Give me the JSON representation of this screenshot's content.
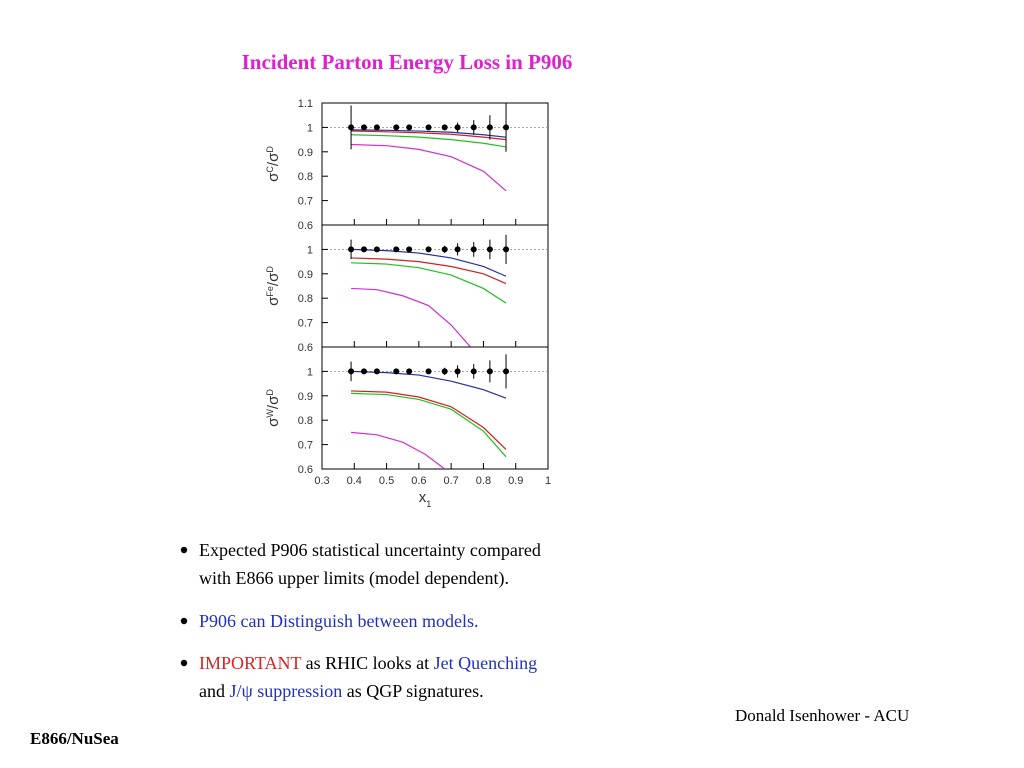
{
  "title": "Incident Parton Energy Loss in P906",
  "title_color": "#e020d0",
  "chart_data": [
    {
      "type": "errorbar",
      "ylabel_parts": [
        "σ",
        "C",
        "/σ",
        "D"
      ],
      "xlim": [
        0.3,
        1
      ],
      "ylim": [
        0.6,
        1.1
      ],
      "yticks": [
        0.6,
        0.7,
        0.8,
        0.9,
        1,
        1.1
      ],
      "xticks": [
        0.3,
        0.4,
        0.5,
        0.6,
        0.7,
        0.8,
        0.9,
        1
      ],
      "points": {
        "color": "#000000",
        "x": [
          0.39,
          0.43,
          0.47,
          0.53,
          0.57,
          0.63,
          0.68,
          0.72,
          0.77,
          0.82,
          0.87
        ],
        "values": [
          1,
          1,
          1,
          1,
          1,
          1,
          1,
          1,
          1,
          1,
          1
        ],
        "errors": [
          0.09,
          0.01,
          0.008,
          0.008,
          0.008,
          0.01,
          0.012,
          0.02,
          0.03,
          0.05,
          0.1
        ]
      },
      "series": [
        {
          "color": "#2030a0",
          "x": [
            0.39,
            0.5,
            0.6,
            0.7,
            0.8,
            0.87
          ],
          "values": [
            0.99,
            0.988,
            0.985,
            0.98,
            0.97,
            0.96
          ]
        },
        {
          "color": "#d02020",
          "x": [
            0.39,
            0.5,
            0.6,
            0.7,
            0.8,
            0.87
          ],
          "values": [
            0.985,
            0.982,
            0.978,
            0.972,
            0.96,
            0.95
          ]
        },
        {
          "color": "#20c020",
          "x": [
            0.39,
            0.5,
            0.6,
            0.7,
            0.8,
            0.87
          ],
          "values": [
            0.97,
            0.966,
            0.96,
            0.95,
            0.935,
            0.92
          ]
        },
        {
          "color": "#d030d0",
          "x": [
            0.39,
            0.5,
            0.6,
            0.7,
            0.8,
            0.87
          ],
          "values": [
            0.93,
            0.925,
            0.91,
            0.88,
            0.82,
            0.74
          ]
        }
      ]
    },
    {
      "type": "errorbar",
      "ylabel_parts": [
        "σ",
        "Fe",
        "/σ",
        "D"
      ],
      "xlim": [
        0.3,
        1
      ],
      "ylim": [
        0.6,
        1.1
      ],
      "yticks": [
        0.6,
        0.7,
        0.8,
        0.9,
        1
      ],
      "xticks": [
        0.3,
        0.4,
        0.5,
        0.6,
        0.7,
        0.8,
        0.9,
        1
      ],
      "points": {
        "color": "#000000",
        "x": [
          0.39,
          0.43,
          0.47,
          0.53,
          0.57,
          0.63,
          0.68,
          0.72,
          0.77,
          0.82,
          0.87
        ],
        "values": [
          1,
          1,
          1,
          1,
          1,
          1,
          1,
          1,
          1,
          1,
          1
        ],
        "errors": [
          0.04,
          0.01,
          0.008,
          0.008,
          0.008,
          0.01,
          0.015,
          0.025,
          0.03,
          0.04,
          0.06
        ]
      },
      "series": [
        {
          "color": "#2030a0",
          "x": [
            0.39,
            0.5,
            0.6,
            0.7,
            0.8,
            0.87
          ],
          "values": [
            1,
            0.995,
            0.985,
            0.965,
            0.93,
            0.89
          ]
        },
        {
          "color": "#d02020",
          "x": [
            0.39,
            0.5,
            0.6,
            0.7,
            0.8,
            0.87
          ],
          "values": [
            0.965,
            0.96,
            0.95,
            0.93,
            0.9,
            0.86
          ]
        },
        {
          "color": "#20c020",
          "x": [
            0.39,
            0.5,
            0.6,
            0.7,
            0.8,
            0.87
          ],
          "values": [
            0.945,
            0.94,
            0.925,
            0.895,
            0.84,
            0.78
          ]
        },
        {
          "color": "#d030d0",
          "x": [
            0.39,
            0.47,
            0.55,
            0.63,
            0.7,
            0.76
          ],
          "values": [
            0.84,
            0.835,
            0.81,
            0.77,
            0.69,
            0.6
          ]
        }
      ]
    },
    {
      "type": "errorbar",
      "ylabel_parts": [
        "σ",
        "W",
        "/σ",
        "D"
      ],
      "xlim": [
        0.3,
        1
      ],
      "ylim": [
        0.6,
        1.1
      ],
      "yticks": [
        0.6,
        0.7,
        0.8,
        0.9,
        1
      ],
      "xticks": [
        0.3,
        0.4,
        0.5,
        0.6,
        0.7,
        0.8,
        0.9,
        1
      ],
      "xlabel_parts": [
        "x",
        "1"
      ],
      "points": {
        "color": "#000000",
        "x": [
          0.39,
          0.43,
          0.47,
          0.53,
          0.57,
          0.63,
          0.68,
          0.72,
          0.77,
          0.82,
          0.87
        ],
        "values": [
          1,
          1,
          1,
          1,
          1,
          1,
          1,
          1,
          1,
          1,
          1
        ],
        "errors": [
          0.04,
          0.01,
          0.008,
          0.008,
          0.008,
          0.01,
          0.015,
          0.025,
          0.03,
          0.045,
          0.07
        ]
      },
      "series": [
        {
          "color": "#2030a0",
          "x": [
            0.39,
            0.5,
            0.6,
            0.7,
            0.8,
            0.87
          ],
          "values": [
            1,
            0.995,
            0.985,
            0.96,
            0.925,
            0.89
          ]
        },
        {
          "color": "#d02020",
          "x": [
            0.39,
            0.5,
            0.6,
            0.7,
            0.8,
            0.87
          ],
          "values": [
            0.92,
            0.915,
            0.895,
            0.855,
            0.77,
            0.68
          ]
        },
        {
          "color": "#20c020",
          "x": [
            0.39,
            0.5,
            0.6,
            0.7,
            0.8,
            0.87
          ],
          "values": [
            0.91,
            0.905,
            0.885,
            0.845,
            0.755,
            0.65
          ]
        },
        {
          "color": "#d030d0",
          "x": [
            0.39,
            0.47,
            0.55,
            0.62,
            0.68
          ],
          "values": [
            0.75,
            0.74,
            0.71,
            0.66,
            0.6
          ]
        }
      ]
    }
  ],
  "bullets": [
    {
      "lines": [
        [
          {
            "text": "Expected P906 statistical uncertainty compared",
            "color": "#000000"
          }
        ],
        [
          {
            "text": "with E866 upper limits (model dependent).",
            "color": "#000000"
          }
        ]
      ]
    },
    {
      "lines": [
        [
          {
            "text": "P906 can Distinguish between models.",
            "color": "#2030c0"
          }
        ]
      ]
    },
    {
      "lines": [
        [
          {
            "text": "IMPORTANT",
            "color": "#e02020"
          },
          {
            "text": " as RHIC looks at ",
            "color": "#000000"
          },
          {
            "text": "Jet Quenching",
            "color": "#2030c0"
          }
        ],
        [
          {
            "text": "and ",
            "color": "#000000"
          },
          {
            "text": "J/ψ suppression",
            "color": "#2030c0"
          },
          {
            "text": " as QGP signatures.",
            "color": "#000000"
          }
        ]
      ]
    }
  ],
  "footer_right": "Donald Isenhower - ACU",
  "footer_left": "E866/NuSea"
}
